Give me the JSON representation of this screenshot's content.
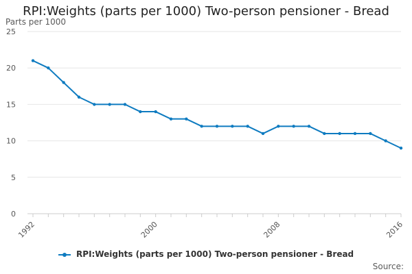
{
  "title": "RPI:Weights (parts per 1000) Two-person pensioner - Bread",
  "source_label": "Source:",
  "chart_data": {
    "type": "line",
    "title": "RPI:Weights (parts per 1000) Two-person pensioner - Bread",
    "ylabel": "Parts per 1000",
    "xlabel": "",
    "x": [
      1992,
      1993,
      1994,
      1995,
      1996,
      1997,
      1998,
      1999,
      2000,
      2001,
      2002,
      2003,
      2004,
      2005,
      2006,
      2007,
      2008,
      2009,
      2010,
      2011,
      2012,
      2013,
      2014,
      2015,
      2016
    ],
    "series": [
      {
        "name": "RPI:Weights (parts per 1000) Two-person pensioner - Bread",
        "color": "#0e7bc0",
        "values": [
          21,
          20,
          18,
          16,
          15,
          15,
          15,
          14,
          14,
          13,
          13,
          12,
          12,
          12,
          12,
          11,
          12,
          12,
          12,
          11,
          11,
          11,
          11,
          10,
          9
        ]
      }
    ],
    "ylim": [
      0,
      25
    ],
    "yticks": [
      0,
      5,
      10,
      15,
      20,
      25
    ],
    "xticks": [
      1992,
      2000,
      2008,
      2016
    ],
    "grid": true,
    "legend_position": "bottom"
  }
}
